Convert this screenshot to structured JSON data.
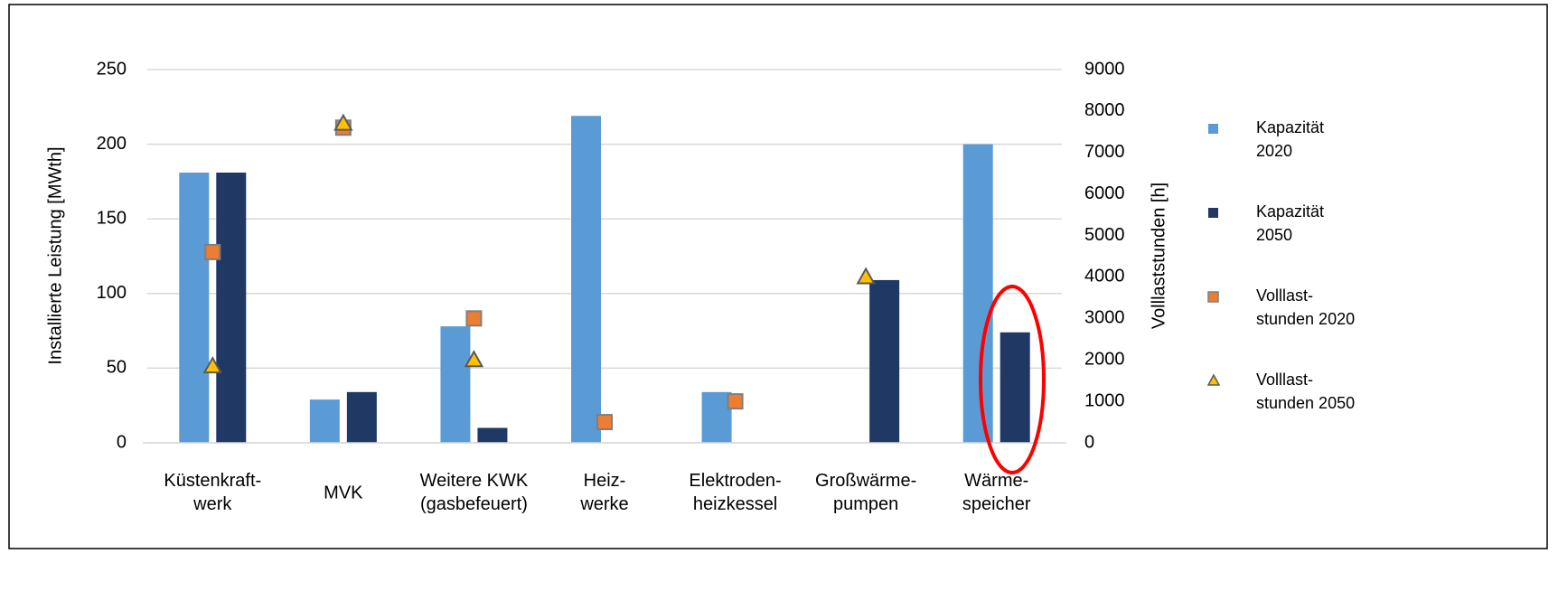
{
  "chart_data": {
    "type": "bar",
    "categories": [
      "Küstenkraft-\nwerk",
      "MVK",
      "Weitere KWK\n(gasbefeuert)",
      "Heiz-\nwerke",
      "Elektroden-\nheizkessel",
      "Großwärme-\npumpen",
      "Wärme-\nspeicher"
    ],
    "ylabel": "Installierte Leistung [MWth]",
    "y2label": "Volllaststunden [h]",
    "ylim": [
      0,
      250
    ],
    "yticks": [
      0,
      50,
      100,
      150,
      200,
      250
    ],
    "y2lim": [
      0,
      9000
    ],
    "y2ticks": [
      0,
      1000,
      2000,
      3000,
      4000,
      5000,
      6000,
      7000,
      8000,
      9000
    ],
    "grid": true,
    "legend": "right",
    "series": [
      {
        "name": "Kapazität\n2020",
        "color": "#5b9bd5",
        "kind": "bar",
        "values": [
          181,
          29,
          78,
          219,
          34,
          null,
          200
        ]
      },
      {
        "name": "Kapazität\n2050",
        "color": "#1f3864",
        "kind": "bar",
        "values": [
          181,
          34,
          10,
          null,
          null,
          109,
          74
        ]
      },
      {
        "name": "Volllast-\nstunden 2020",
        "color": "#ed7d31",
        "kind": "square",
        "axis": "y2",
        "values": [
          4600,
          7600,
          3000,
          500,
          1000,
          null,
          null
        ]
      },
      {
        "name": "Volllast-\nstunden 2050",
        "color": "#ffc000",
        "kind": "triangle",
        "axis": "y2",
        "values": [
          1850,
          7700,
          2000,
          null,
          null,
          4000,
          null
        ]
      }
    ]
  }
}
